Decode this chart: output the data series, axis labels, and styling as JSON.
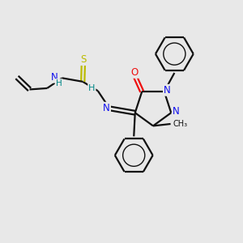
{
  "background_color": "#e8e8e8",
  "bond_color": "#111111",
  "atom_colors": {
    "N": "#1010ee",
    "O": "#ee1010",
    "S": "#bbbb00",
    "H": "#008888",
    "C": "#111111"
  },
  "figsize": [
    3.0,
    3.0
  ],
  "dpi": 100,
  "xlim": [
    0,
    10
  ],
  "ylim": [
    0,
    10
  ]
}
